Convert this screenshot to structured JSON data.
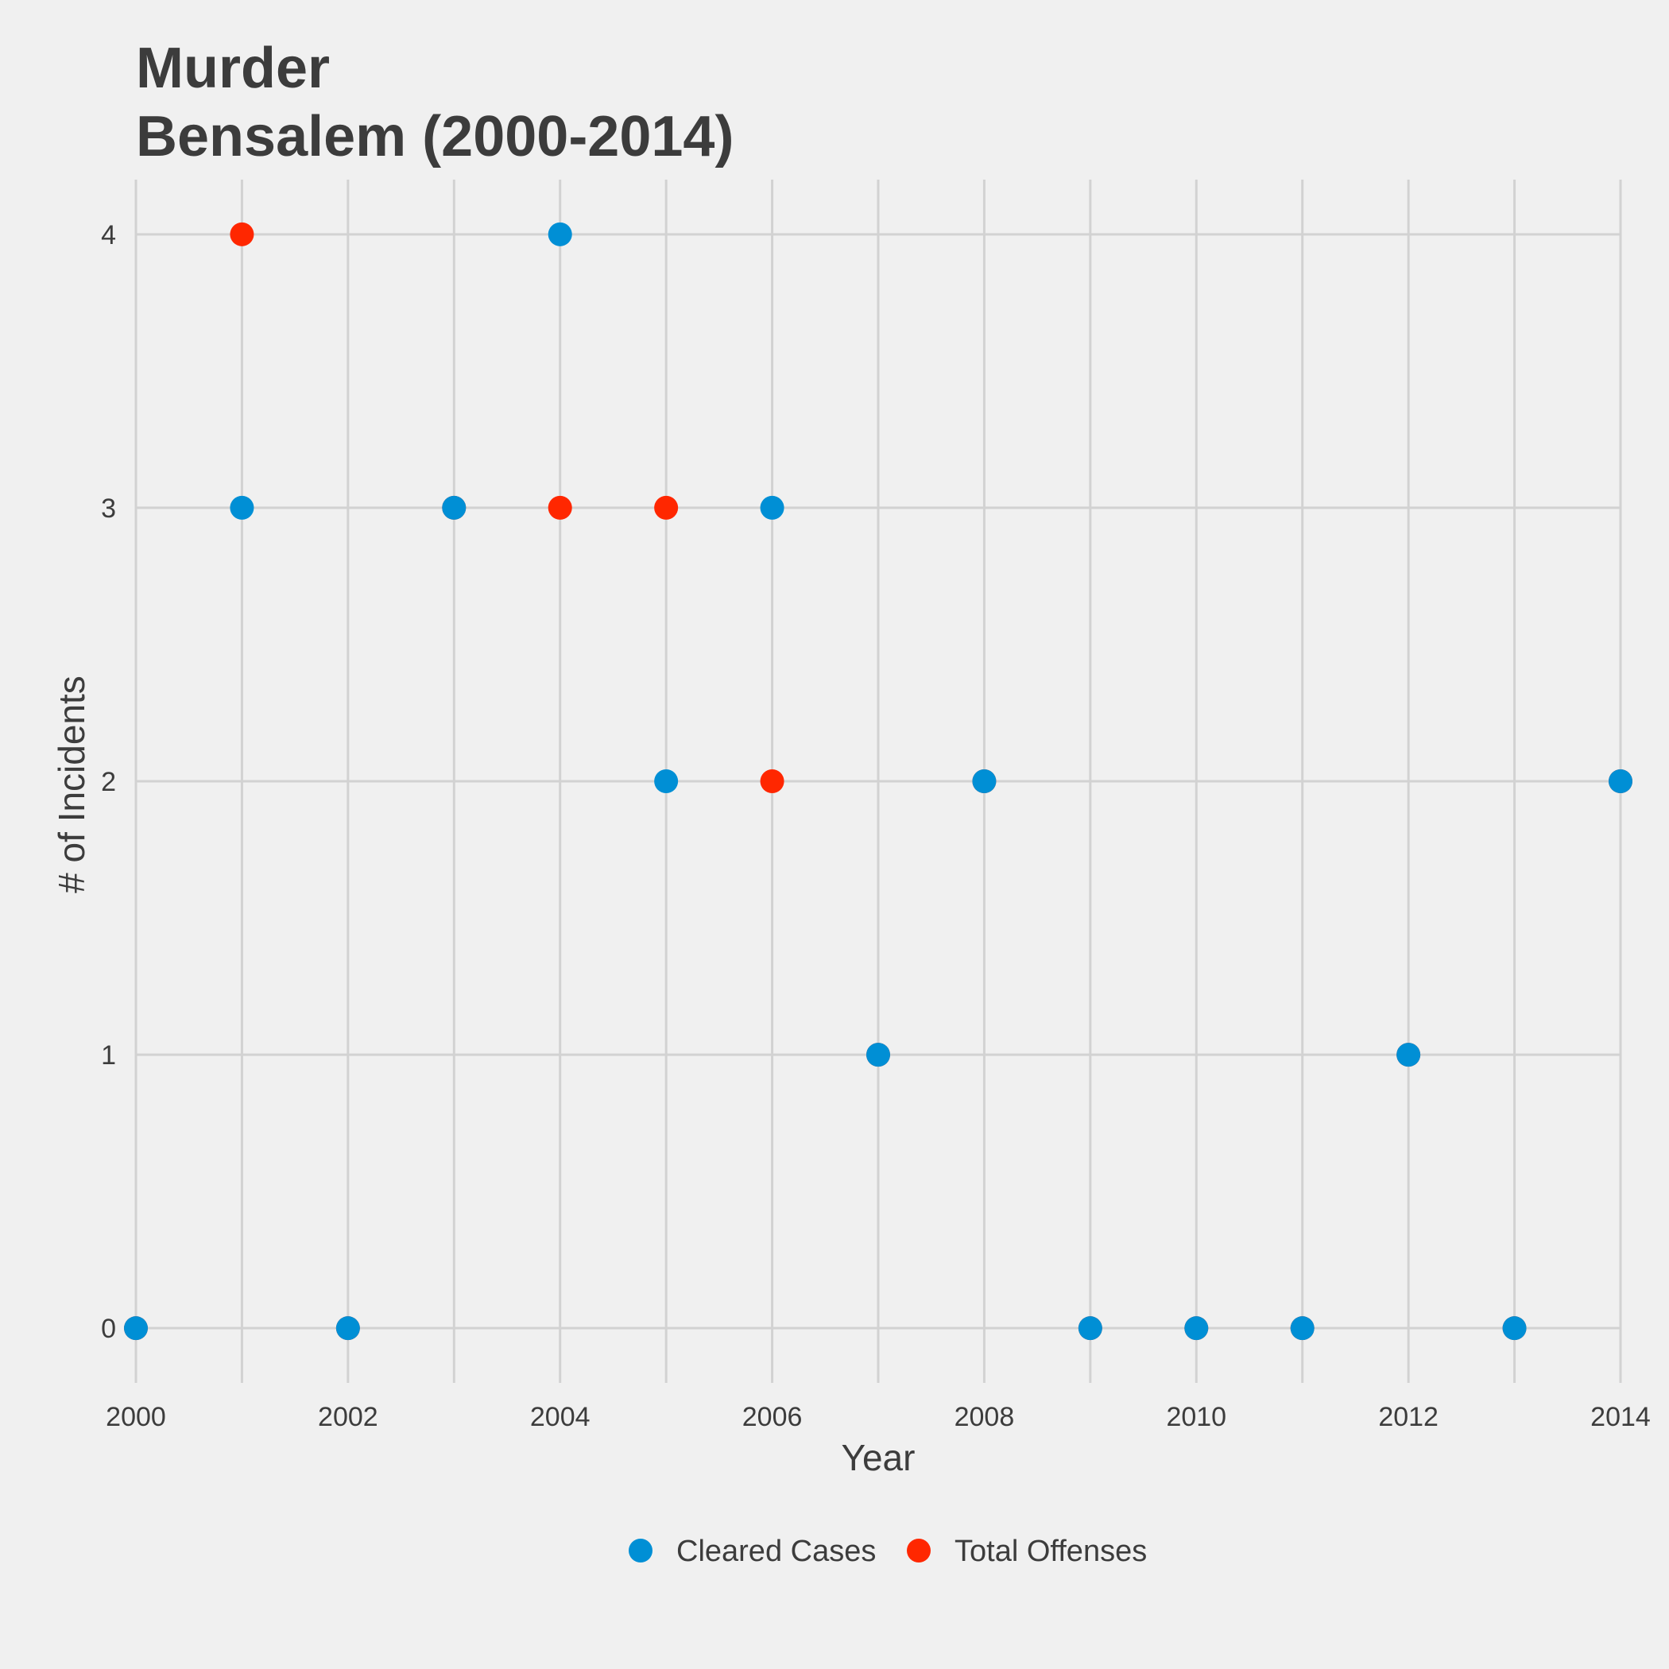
{
  "chart_data": {
    "type": "scatter",
    "title_line1": "Murder",
    "title_line2": "Bensalem (2000-2014)",
    "xlabel": "Year",
    "ylabel": "# of Incidents",
    "xlim": [
      2000,
      2014
    ],
    "ylim": [
      -0.2,
      4.2
    ],
    "x_ticks": [
      2000,
      2002,
      2004,
      2006,
      2008,
      2010,
      2012,
      2014
    ],
    "y_ticks": [
      0,
      1,
      2,
      3,
      4
    ],
    "grid": true,
    "legend_position": "bottom",
    "series": [
      {
        "name": "Total Offenses",
        "color": "#ff2700",
        "x": [
          2000,
          2001,
          2002,
          2003,
          2004,
          2005,
          2006,
          2007,
          2008,
          2009,
          2010,
          2011,
          2012,
          2013,
          2014
        ],
        "y": [
          0,
          4,
          0,
          3,
          3,
          3,
          2,
          1,
          2,
          0,
          0,
          0,
          1,
          0,
          2
        ]
      },
      {
        "name": "Cleared Cases",
        "color": "#008fd5",
        "x": [
          2000,
          2001,
          2002,
          2003,
          2004,
          2005,
          2006,
          2007,
          2008,
          2009,
          2010,
          2011,
          2012,
          2013,
          2014
        ],
        "y": [
          0,
          3,
          0,
          3,
          4,
          2,
          3,
          1,
          2,
          0,
          0,
          0,
          1,
          0,
          2
        ]
      }
    ],
    "legend": [
      {
        "label": "Cleared Cases",
        "color": "#008fd5"
      },
      {
        "label": "Total Offenses",
        "color": "#ff2700"
      }
    ]
  }
}
